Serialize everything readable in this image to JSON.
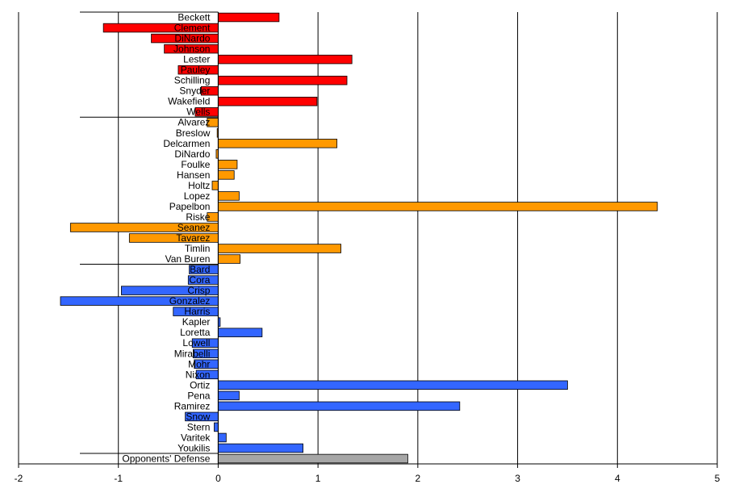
{
  "chart_data": {
    "type": "bar",
    "orientation": "horizontal",
    "title": "",
    "xlabel": "",
    "ylabel": "",
    "xlim": [
      -2,
      5
    ],
    "xticks": [
      -2,
      -1,
      0,
      1,
      2,
      3,
      4,
      5
    ],
    "grid": "vertical",
    "legend": "none",
    "group_colors": {
      "starters": "#ff0000",
      "relievers": "#ff9900",
      "position_players": "#3366ff",
      "defense": "#a6a6a6"
    },
    "bars": [
      {
        "name": "Beckett",
        "value": 0.61,
        "group": "starters"
      },
      {
        "name": "Clement",
        "value": -1.15,
        "group": "starters"
      },
      {
        "name": "DiNardo",
        "value": -0.67,
        "group": "starters"
      },
      {
        "name": "Johnson",
        "value": -0.54,
        "group": "starters"
      },
      {
        "name": "Lester",
        "value": 1.34,
        "group": "starters"
      },
      {
        "name": "Pauley",
        "value": -0.4,
        "group": "starters"
      },
      {
        "name": "Schilling",
        "value": 1.29,
        "group": "starters"
      },
      {
        "name": "Snyder",
        "value": -0.17,
        "group": "starters"
      },
      {
        "name": "Wakefield",
        "value": 0.99,
        "group": "starters"
      },
      {
        "name": "Wells",
        "value": -0.23,
        "group": "starters"
      },
      {
        "name": "Alvarez",
        "value": -0.11,
        "group": "relievers"
      },
      {
        "name": "Breslow",
        "value": -0.01,
        "group": "relievers"
      },
      {
        "name": "Delcarmen",
        "value": 1.19,
        "group": "relievers"
      },
      {
        "name": "DiNardo",
        "value": -0.02,
        "group": "relievers"
      },
      {
        "name": "Foulke",
        "value": 0.19,
        "group": "relievers"
      },
      {
        "name": "Hansen",
        "value": 0.16,
        "group": "relievers"
      },
      {
        "name": "Holtz",
        "value": -0.06,
        "group": "relievers"
      },
      {
        "name": "Lopez",
        "value": 0.21,
        "group": "relievers"
      },
      {
        "name": "Papelbon",
        "value": 4.4,
        "group": "relievers"
      },
      {
        "name": "Riske",
        "value": -0.11,
        "group": "relievers"
      },
      {
        "name": "Seanez",
        "value": -1.48,
        "group": "relievers"
      },
      {
        "name": "Tavarez",
        "value": -0.89,
        "group": "relievers"
      },
      {
        "name": "Timlin",
        "value": 1.23,
        "group": "relievers"
      },
      {
        "name": "Van Buren",
        "value": 0.22,
        "group": "relievers"
      },
      {
        "name": "Bard",
        "value": -0.29,
        "group": "position_players"
      },
      {
        "name": "Cora",
        "value": -0.3,
        "group": "position_players"
      },
      {
        "name": "Crisp",
        "value": -0.97,
        "group": "position_players"
      },
      {
        "name": "Gonzalez",
        "value": -1.58,
        "group": "position_players"
      },
      {
        "name": "Harris",
        "value": -0.45,
        "group": "position_players"
      },
      {
        "name": "Kapler",
        "value": 0.02,
        "group": "position_players"
      },
      {
        "name": "Loretta",
        "value": 0.44,
        "group": "position_players"
      },
      {
        "name": "Lowell",
        "value": -0.26,
        "group": "position_players"
      },
      {
        "name": "Mirabelli",
        "value": -0.25,
        "group": "position_players"
      },
      {
        "name": "Mohr",
        "value": -0.24,
        "group": "position_players"
      },
      {
        "name": "Nixon",
        "value": -0.22,
        "group": "position_players"
      },
      {
        "name": "Ortiz",
        "value": 3.5,
        "group": "position_players"
      },
      {
        "name": "Pena",
        "value": 0.21,
        "group": "position_players"
      },
      {
        "name": "Ramirez",
        "value": 2.42,
        "group": "position_players"
      },
      {
        "name": "Snow",
        "value": -0.33,
        "group": "position_players"
      },
      {
        "name": "Stern",
        "value": -0.04,
        "group": "position_players"
      },
      {
        "name": "Varitek",
        "value": 0.08,
        "group": "position_players"
      },
      {
        "name": "Youkilis",
        "value": 0.85,
        "group": "position_players"
      },
      {
        "name": "Opponents' Defense",
        "value": 1.9,
        "group": "defense"
      }
    ]
  }
}
